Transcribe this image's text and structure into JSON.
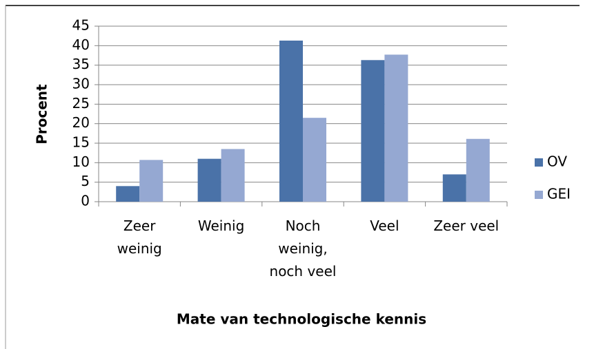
{
  "chart_data": {
    "type": "bar",
    "categories": [
      "Zeer weinig",
      "Weinig",
      "Noch weinig, noch veel",
      "Veel",
      "Zeer veel"
    ],
    "series": [
      {
        "name": "OV",
        "color": "#4a72a8",
        "values": [
          4,
          11,
          41.3,
          36.3,
          7
        ]
      },
      {
        "name": "GEI",
        "color": "#95a8d2",
        "values": [
          10.7,
          13.5,
          21.5,
          37.7,
          16.1
        ]
      }
    ],
    "ylabel": "Procent",
    "xlabel": "Mate van technologische kennis",
    "ylim": [
      0,
      45
    ],
    "yticks": [
      0,
      5,
      10,
      15,
      20,
      25,
      30,
      35,
      40,
      45
    ],
    "grid": true,
    "legend": "right"
  }
}
